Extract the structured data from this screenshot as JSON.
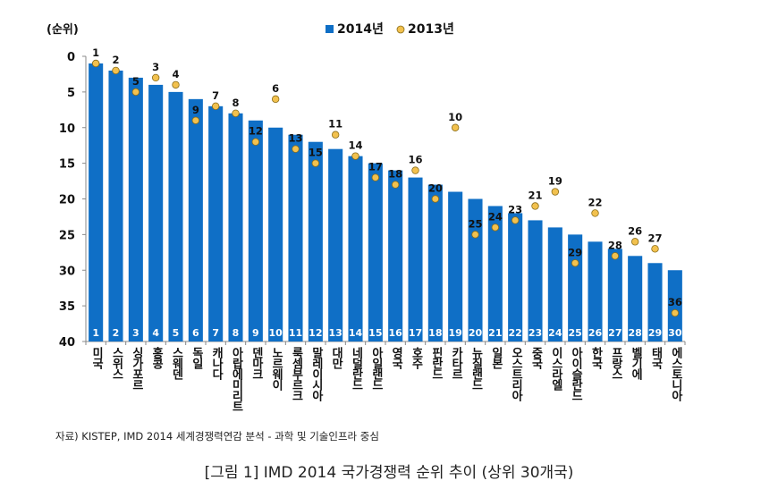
{
  "chart_data": {
    "type": "bar",
    "ylabel": "(순위)",
    "ylim": [
      0,
      40
    ],
    "y_inverted": true,
    "yticks": [
      0,
      5,
      10,
      15,
      20,
      25,
      30,
      35,
      40
    ],
    "legend_position": "top-center",
    "categories": [
      "미국",
      "스위스",
      "싱가포르",
      "홍콩",
      "스웨덴",
      "독일",
      "캐나다",
      "아랍에미리트",
      "덴마크",
      "노르웨이",
      "룩셈부르크",
      "말레이시아",
      "대만",
      "네덜란드",
      "아일랜드",
      "영국",
      "호주",
      "핀란드",
      "카타르",
      "뉴질랜드",
      "일본",
      "오스트리아",
      "중국",
      "이스라엘",
      "아이슬란드",
      "한국",
      "프랑스",
      "벨기에",
      "태국",
      "에스토니아"
    ],
    "series": [
      {
        "name": "2014년",
        "kind": "bar",
        "color": "#0f6fc6",
        "values": [
          1,
          2,
          3,
          4,
          5,
          6,
          7,
          8,
          9,
          10,
          11,
          12,
          13,
          14,
          15,
          16,
          17,
          18,
          19,
          20,
          21,
          22,
          23,
          24,
          25,
          26,
          27,
          28,
          29,
          30
        ]
      },
      {
        "name": "2013년",
        "kind": "marker",
        "color": "#f2c14e",
        "values": [
          1,
          2,
          5,
          3,
          4,
          9,
          7,
          8,
          12,
          6,
          13,
          15,
          11,
          14,
          17,
          18,
          16,
          20,
          10,
          25,
          24,
          23,
          21,
          19,
          29,
          22,
          28,
          26,
          27,
          36
        ]
      }
    ]
  },
  "source": "자료) KISTEP, IMD 2014 세계경쟁력연감 분석 - 과학 및 기술인프라 중심",
  "caption": "[그림 1] IMD 2014 국가경쟁력 순위 추이 (상위 30개국)"
}
